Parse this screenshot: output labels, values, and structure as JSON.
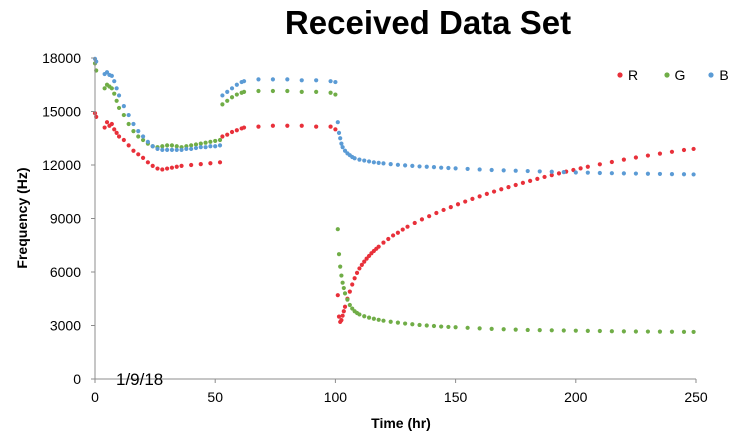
{
  "chart_data": {
    "type": "scatter",
    "title": "Received Data Set",
    "xlabel": "Time (hr)",
    "ylabel": "Frequency (Hz)",
    "xlim": [
      0,
      250
    ],
    "ylim": [
      0,
      18000
    ],
    "xticks": [
      "0",
      "50",
      "100",
      "150",
      "200",
      "250"
    ],
    "yticks": [
      "0",
      "3000",
      "6000",
      "9000",
      "12000",
      "15000",
      "18000"
    ],
    "grid": false,
    "legend_position": "top-right",
    "annotation": "1/9/18",
    "series": [
      {
        "name": "R",
        "color": "#e8303a",
        "points": [
          [
            0,
            14900
          ],
          [
            0.5,
            14700
          ],
          [
            4,
            14100
          ],
          [
            5,
            14400
          ],
          [
            6,
            14200
          ],
          [
            7,
            14300
          ],
          [
            8,
            14000
          ],
          [
            9,
            13800
          ],
          [
            10,
            13600
          ],
          [
            12,
            13400
          ],
          [
            14,
            13100
          ],
          [
            16,
            12800
          ],
          [
            18,
            12600
          ],
          [
            20,
            12400
          ],
          [
            22,
            12150
          ],
          [
            24,
            11950
          ],
          [
            26,
            11800
          ],
          [
            28,
            11750
          ],
          [
            30,
            11800
          ],
          [
            32,
            11850
          ],
          [
            34,
            11900
          ],
          [
            36,
            11950
          ],
          [
            40,
            12000
          ],
          [
            44,
            12050
          ],
          [
            48,
            12100
          ],
          [
            52,
            12150
          ],
          [
            53,
            13600
          ],
          [
            55,
            13700
          ],
          [
            57,
            13850
          ],
          [
            59,
            13950
          ],
          [
            61,
            14050
          ],
          [
            62,
            14100
          ],
          [
            68,
            14150
          ],
          [
            74,
            14200
          ],
          [
            80,
            14200
          ],
          [
            86,
            14200
          ],
          [
            92,
            14150
          ],
          [
            98,
            14150
          ],
          [
            100,
            14000
          ],
          [
            101,
            4700
          ],
          [
            101.5,
            3500
          ],
          [
            102,
            3200
          ],
          [
            102.5,
            3300
          ],
          [
            103,
            3550
          ],
          [
            103.5,
            3800
          ],
          [
            104,
            4050
          ],
          [
            105,
            4500
          ],
          [
            106,
            4900
          ],
          [
            107,
            5300
          ],
          [
            108,
            5650
          ],
          [
            109,
            5950
          ],
          [
            110,
            6200
          ],
          [
            111,
            6400
          ],
          [
            112,
            6580
          ],
          [
            113,
            6750
          ],
          [
            114,
            6900
          ],
          [
            115,
            7050
          ],
          [
            116,
            7180
          ],
          [
            117,
            7300
          ],
          [
            118,
            7420
          ],
          [
            120,
            7650
          ],
          [
            122,
            7850
          ],
          [
            124,
            8050
          ],
          [
            126,
            8200
          ],
          [
            128,
            8380
          ],
          [
            130,
            8540
          ],
          [
            133,
            8750
          ],
          [
            136,
            8950
          ],
          [
            139,
            9130
          ],
          [
            142,
            9310
          ],
          [
            145,
            9480
          ],
          [
            148,
            9640
          ],
          [
            151,
            9800
          ],
          [
            154,
            9950
          ],
          [
            157,
            10100
          ],
          [
            160,
            10240
          ],
          [
            163,
            10380
          ],
          [
            166,
            10510
          ],
          [
            169,
            10640
          ],
          [
            172,
            10760
          ],
          [
            175,
            10880
          ],
          [
            178,
            11000
          ],
          [
            181,
            11110
          ],
          [
            184,
            11220
          ],
          [
            187,
            11330
          ],
          [
            190,
            11430
          ],
          [
            193,
            11530
          ],
          [
            196,
            11630
          ],
          [
            199,
            11720
          ],
          [
            202,
            11810
          ],
          [
            205,
            11900
          ],
          [
            210,
            12040
          ],
          [
            215,
            12170
          ],
          [
            220,
            12300
          ],
          [
            225,
            12420
          ],
          [
            230,
            12530
          ],
          [
            235,
            12640
          ],
          [
            240,
            12740
          ],
          [
            245,
            12840
          ],
          [
            249,
            12900
          ]
        ]
      },
      {
        "name": "G",
        "color": "#70ad47",
        "points": [
          [
            0,
            17700
          ],
          [
            0.5,
            17300
          ],
          [
            4,
            16300
          ],
          [
            5,
            16500
          ],
          [
            6,
            16400
          ],
          [
            7,
            16300
          ],
          [
            8,
            16000
          ],
          [
            9,
            15600
          ],
          [
            10,
            15200
          ],
          [
            12,
            14800
          ],
          [
            14,
            14300
          ],
          [
            16,
            13900
          ],
          [
            18,
            13600
          ],
          [
            20,
            13400
          ],
          [
            22,
            13200
          ],
          [
            24,
            13050
          ],
          [
            26,
            13000
          ],
          [
            28,
            13050
          ],
          [
            30,
            13100
          ],
          [
            32,
            13100
          ],
          [
            34,
            13050
          ],
          [
            36,
            13000
          ],
          [
            38,
            13050
          ],
          [
            40,
            13100
          ],
          [
            42,
            13150
          ],
          [
            44,
            13200
          ],
          [
            46,
            13250
          ],
          [
            48,
            13300
          ],
          [
            50,
            13350
          ],
          [
            52,
            13400
          ],
          [
            53,
            15400
          ],
          [
            55,
            15600
          ],
          [
            57,
            15800
          ],
          [
            59,
            15950
          ],
          [
            61,
            16050
          ],
          [
            62,
            16100
          ],
          [
            68,
            16150
          ],
          [
            74,
            16150
          ],
          [
            80,
            16150
          ],
          [
            86,
            16100
          ],
          [
            92,
            16100
          ],
          [
            98,
            16050
          ],
          [
            100,
            15950
          ],
          [
            101,
            8400
          ],
          [
            101.5,
            7000
          ],
          [
            102,
            6300
          ],
          [
            102.5,
            5800
          ],
          [
            103,
            5400
          ],
          [
            103.5,
            5100
          ],
          [
            104,
            4800
          ],
          [
            105,
            4450
          ],
          [
            106,
            4150
          ],
          [
            107,
            3950
          ],
          [
            108,
            3800
          ],
          [
            109,
            3700
          ],
          [
            110,
            3620
          ],
          [
            112,
            3520
          ],
          [
            114,
            3440
          ],
          [
            116,
            3380
          ],
          [
            118,
            3320
          ],
          [
            120,
            3270
          ],
          [
            123,
            3210
          ],
          [
            126,
            3160
          ],
          [
            129,
            3110
          ],
          [
            132,
            3070
          ],
          [
            135,
            3030
          ],
          [
            138,
            3000
          ],
          [
            141,
            2970
          ],
          [
            144,
            2940
          ],
          [
            147,
            2920
          ],
          [
            150,
            2900
          ],
          [
            155,
            2870
          ],
          [
            160,
            2840
          ],
          [
            165,
            2810
          ],
          [
            170,
            2790
          ],
          [
            175,
            2770
          ],
          [
            180,
            2750
          ],
          [
            185,
            2740
          ],
          [
            190,
            2730
          ],
          [
            195,
            2720
          ],
          [
            200,
            2710
          ],
          [
            205,
            2700
          ],
          [
            210,
            2690
          ],
          [
            215,
            2680
          ],
          [
            220,
            2670
          ],
          [
            225,
            2665
          ],
          [
            230,
            2660
          ],
          [
            235,
            2655
          ],
          [
            240,
            2650
          ],
          [
            245,
            2645
          ],
          [
            249,
            2640
          ]
        ]
      },
      {
        "name": "B",
        "color": "#5b9bd5",
        "points": [
          [
            0,
            17950
          ],
          [
            0.5,
            17800
          ],
          [
            4,
            17100
          ],
          [
            5,
            17200
          ],
          [
            6,
            17050
          ],
          [
            7,
            17000
          ],
          [
            8,
            16700
          ],
          [
            9,
            16300
          ],
          [
            10,
            15900
          ],
          [
            12,
            15300
          ],
          [
            14,
            14800
          ],
          [
            16,
            14300
          ],
          [
            18,
            13900
          ],
          [
            20,
            13600
          ],
          [
            22,
            13300
          ],
          [
            24,
            13050
          ],
          [
            26,
            12900
          ],
          [
            28,
            12850
          ],
          [
            30,
            12850
          ],
          [
            32,
            12850
          ],
          [
            34,
            12850
          ],
          [
            36,
            12850
          ],
          [
            38,
            12900
          ],
          [
            40,
            12900
          ],
          [
            42,
            12950
          ],
          [
            44,
            13000
          ],
          [
            46,
            13000
          ],
          [
            48,
            13050
          ],
          [
            50,
            13050
          ],
          [
            52,
            13100
          ],
          [
            53,
            15900
          ],
          [
            55,
            16100
          ],
          [
            57,
            16300
          ],
          [
            59,
            16500
          ],
          [
            61,
            16650
          ],
          [
            62,
            16700
          ],
          [
            68,
            16800
          ],
          [
            74,
            16800
          ],
          [
            80,
            16800
          ],
          [
            86,
            16750
          ],
          [
            92,
            16750
          ],
          [
            98,
            16700
          ],
          [
            100,
            16650
          ],
          [
            101,
            14400
          ],
          [
            101.5,
            13800
          ],
          [
            102,
            13500
          ],
          [
            102.5,
            13200
          ],
          [
            103,
            13000
          ],
          [
            104,
            12800
          ],
          [
            105,
            12650
          ],
          [
            106,
            12550
          ],
          [
            107,
            12450
          ],
          [
            108,
            12380
          ],
          [
            110,
            12300
          ],
          [
            112,
            12250
          ],
          [
            114,
            12200
          ],
          [
            116,
            12150
          ],
          [
            118,
            12120
          ],
          [
            120,
            12090
          ],
          [
            123,
            12050
          ],
          [
            126,
            12010
          ],
          [
            129,
            11980
          ],
          [
            132,
            11950
          ],
          [
            135,
            11920
          ],
          [
            138,
            11900
          ],
          [
            141,
            11880
          ],
          [
            144,
            11850
          ],
          [
            147,
            11830
          ],
          [
            150,
            11810
          ],
          [
            155,
            11780
          ],
          [
            160,
            11750
          ],
          [
            165,
            11720
          ],
          [
            170,
            11700
          ],
          [
            175,
            11680
          ],
          [
            180,
            11660
          ],
          [
            185,
            11640
          ],
          [
            190,
            11620
          ],
          [
            195,
            11600
          ],
          [
            200,
            11580
          ],
          [
            205,
            11570
          ],
          [
            210,
            11550
          ],
          [
            215,
            11540
          ],
          [
            220,
            11530
          ],
          [
            225,
            11520
          ],
          [
            230,
            11510
          ],
          [
            235,
            11500
          ],
          [
            240,
            11490
          ],
          [
            245,
            11480
          ],
          [
            249,
            11470
          ]
        ]
      }
    ]
  }
}
